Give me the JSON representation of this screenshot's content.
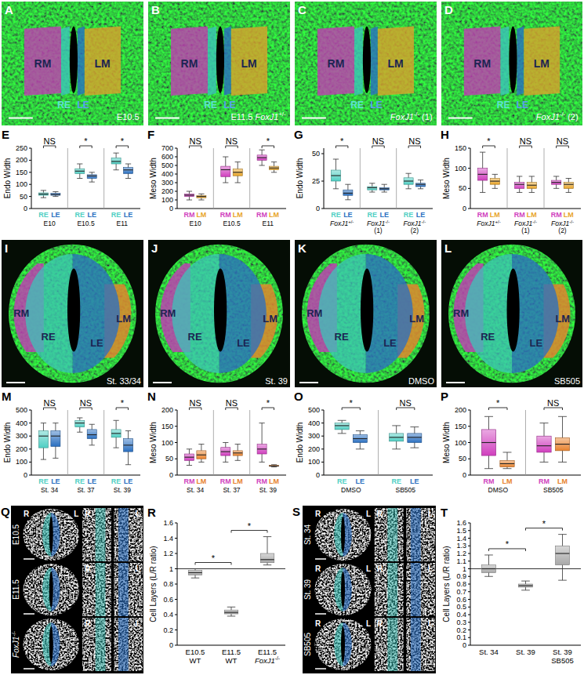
{
  "panels": [
    {
      "letter": "A",
      "caption": "E10.5",
      "regions": [
        "RM",
        "RE",
        "LE",
        "LM"
      ]
    },
    {
      "letter": "B",
      "caption": "E11.5 FoxJ1+/-",
      "regions": [
        "RM",
        "RE",
        "LE",
        "LM"
      ]
    },
    {
      "letter": "C",
      "caption": "FoxJ1-/- (1)",
      "regions": [
        "RM",
        "RE",
        "LE",
        "LM"
      ]
    },
    {
      "letter": "D",
      "caption": "FoxJ1-/- (2)",
      "regions": [
        "RM",
        "RE",
        "LE",
        "LM"
      ]
    },
    {
      "letter": "I",
      "caption": "St. 33/34",
      "regions": [
        "RM",
        "RE",
        "LE",
        "LM"
      ]
    },
    {
      "letter": "J",
      "caption": "St. 39",
      "regions": [
        "RM",
        "RE",
        "LE",
        "LM"
      ]
    },
    {
      "letter": "K",
      "caption": "DMSO",
      "regions": [
        "RM",
        "RE",
        "LE",
        "LM"
      ]
    },
    {
      "letter": "L",
      "caption": "SB505",
      "regions": [
        "RM",
        "RE",
        "LE",
        "LM"
      ]
    },
    {
      "letter": "Q",
      "rows": [
        "E10.5",
        "E11.5",
        "FoxJ1-/-"
      ],
      "sides": [
        "R",
        "L"
      ]
    },
    {
      "letter": "S",
      "rows": [
        "St. 34",
        "St. 39",
        "SB505"
      ],
      "sides": [
        "R",
        "L"
      ]
    }
  ],
  "chart_data": [
    {
      "type": "box",
      "panel": "E",
      "y_label": "Endo Width",
      "ylim": [
        0,
        250
      ],
      "yticks": [
        0,
        50,
        100,
        150,
        200,
        250
      ],
      "groups": [
        {
          "label": "E10",
          "annotation": "NS",
          "boxes": [
            {
              "name": "RE",
              "color": "#4fcfc3",
              "values": [
                45,
                55,
                60,
                65,
                75
              ]
            },
            {
              "name": "LE",
              "color": "#2a6fc0",
              "values": [
                50,
                55,
                58,
                63,
                70
              ]
            }
          ]
        },
        {
          "label": "E10.5",
          "annotation": "*",
          "boxes": [
            {
              "name": "RE",
              "color": "#4fcfc3",
              "values": [
                125,
                145,
                155,
                165,
                185
              ]
            },
            {
              "name": "LE",
              "color": "#2a6fc0",
              "values": [
                110,
                125,
                135,
                140,
                150
              ]
            }
          ]
        },
        {
          "label": "E11",
          "annotation": "*",
          "boxes": [
            {
              "name": "RE",
              "color": "#4fcfc3",
              "values": [
                160,
                185,
                195,
                210,
                230
              ]
            },
            {
              "name": "LE",
              "color": "#2a6fc0",
              "values": [
                125,
                145,
                160,
                170,
                185
              ]
            }
          ]
        }
      ]
    },
    {
      "type": "box",
      "panel": "F",
      "y_label": "Meso Width",
      "ylim": [
        0,
        700
      ],
      "yticks": [
        0,
        100,
        200,
        300,
        400,
        500,
        600,
        700
      ],
      "groups": [
        {
          "label": "E10",
          "annotation": "NS",
          "boxes": [
            {
              "name": "RM",
              "color": "#d03fbe",
              "values": [
                100,
                140,
                155,
                170,
                200
              ]
            },
            {
              "name": "LM",
              "color": "#e8a52a",
              "values": [
                100,
                125,
                140,
                150,
                170
              ]
            }
          ]
        },
        {
          "label": "E10.5",
          "annotation": "NS",
          "boxes": [
            {
              "name": "RM",
              "color": "#d03fbe",
              "values": [
                300,
                370,
                450,
                490,
                600
              ]
            },
            {
              "name": "LM",
              "color": "#e8a52a",
              "values": [
                300,
                380,
                420,
                460,
                540
              ]
            }
          ]
        },
        {
          "label": "E11",
          "annotation": "*",
          "boxes": [
            {
              "name": "RM",
              "color": "#d03fbe",
              "values": [
                500,
                560,
                590,
                620,
                680
              ]
            },
            {
              "name": "LM",
              "color": "#e8a52a",
              "values": [
                420,
                450,
                470,
                490,
                540
              ]
            }
          ]
        }
      ]
    },
    {
      "type": "box",
      "panel": "G",
      "y_label": "Endo Width",
      "ylim": [
        0,
        55
      ],
      "yticks": [
        0,
        25,
        50
      ],
      "groups": [
        {
          "label": "FoxJ1+/-",
          "annotation": "*",
          "boxes": [
            {
              "name": "RE",
              "color": "#4fcfc3",
              "values": [
                18,
                25,
                30,
                35,
                45
              ]
            },
            {
              "name": "LE",
              "color": "#2a6fc0",
              "values": [
                8,
                12,
                14,
                17,
                22
              ]
            }
          ]
        },
        {
          "label": [
            "FoxJ1-/-",
            "(1)"
          ],
          "annotation": "NS",
          "boxes": [
            {
              "name": "RE",
              "color": "#4fcfc3",
              "values": [
                15,
                17,
                19,
                20,
                23
              ]
            },
            {
              "name": "LE",
              "color": "#2a6fc0",
              "values": [
                15,
                17,
                18,
                19,
                22
              ]
            }
          ]
        },
        {
          "label": [
            "FoxJ1-/-",
            "(2)"
          ],
          "annotation": "NS",
          "boxes": [
            {
              "name": "RE",
              "color": "#4fcfc3",
              "values": [
                18,
                22,
                25,
                28,
                32
              ]
            },
            {
              "name": "LE",
              "color": "#2a6fc0",
              "values": [
                18,
                20,
                22,
                23,
                26
              ]
            }
          ]
        }
      ]
    },
    {
      "type": "box",
      "panel": "H",
      "y_label": "Meso Width",
      "ylim": [
        0,
        150
      ],
      "yticks": [
        0,
        50,
        100,
        150
      ],
      "groups": [
        {
          "label": "FoxJ1+/-",
          "annotation": "*",
          "boxes": [
            {
              "name": "RM",
              "color": "#d03fbe",
              "values": [
                40,
                70,
                85,
                100,
                140
              ]
            },
            {
              "name": "LM",
              "color": "#e8a52a",
              "values": [
                50,
                60,
                68,
                75,
                85
              ]
            }
          ]
        },
        {
          "label": [
            "FoxJ1-/-",
            "(1)"
          ],
          "annotation": "NS",
          "boxes": [
            {
              "name": "RM",
              "color": "#d03fbe",
              "values": [
                40,
                50,
                60,
                65,
                80
              ]
            },
            {
              "name": "LM",
              "color": "#e8a52a",
              "values": [
                40,
                50,
                58,
                65,
                80
              ]
            }
          ]
        },
        {
          "label": [
            "FoxJ1-/-",
            "(2)"
          ],
          "annotation": "NS",
          "boxes": [
            {
              "name": "RM",
              "color": "#d03fbe",
              "values": [
                50,
                60,
                65,
                70,
                80
              ]
            },
            {
              "name": "LM",
              "color": "#e8a52a",
              "values": [
                40,
                50,
                60,
                65,
                75
              ]
            }
          ]
        }
      ]
    },
    {
      "type": "box",
      "panel": "M",
      "y_label": "Endo Width",
      "ylim": [
        0,
        500
      ],
      "yticks": [
        0,
        100,
        200,
        300,
        400,
        500
      ],
      "groups": [
        {
          "label": "St. 34",
          "annotation": "NS",
          "boxes": [
            {
              "name": "RE",
              "color": "#4fcfc3",
              "values": [
                120,
                210,
                300,
                340,
                400
              ]
            },
            {
              "name": "LE",
              "color": "#2a6fc0",
              "values": [
                130,
                220,
                300,
                340,
                400
              ]
            }
          ]
        },
        {
          "label": "St. 37",
          "annotation": "NS",
          "boxes": [
            {
              "name": "RE",
              "color": "#4fcfc3",
              "values": [
                330,
                370,
                400,
                420,
                440
              ]
            },
            {
              "name": "LE",
              "color": "#2a6fc0",
              "values": [
                230,
                280,
                310,
                350,
                390
              ]
            }
          ]
        },
        {
          "label": "St. 39",
          "annotation": "*",
          "boxes": [
            {
              "name": "RE",
              "color": "#4fcfc3",
              "values": [
                210,
                290,
                320,
                350,
                420
              ]
            },
            {
              "name": "LE",
              "color": "#2a6fc0",
              "values": [
                80,
                180,
                230,
                280,
                340
              ]
            }
          ]
        }
      ]
    },
    {
      "type": "box",
      "panel": "N",
      "y_label": "Meso Width",
      "ylim": [
        0,
        200
      ],
      "yticks": [
        0,
        50,
        100,
        150,
        200
      ],
      "groups": [
        {
          "label": "St. 34",
          "annotation": "NS",
          "boxes": [
            {
              "name": "RM",
              "color": "#d03fbe",
              "values": [
                30,
                45,
                55,
                65,
                80
              ]
            },
            {
              "name": "LM",
              "color": "#e8832f",
              "values": [
                40,
                50,
                62,
                75,
                95
              ]
            }
          ]
        },
        {
          "label": "St. 37",
          "annotation": "NS",
          "boxes": [
            {
              "name": "RM",
              "color": "#d03fbe",
              "values": [
                40,
                60,
                72,
                85,
                100
              ]
            },
            {
              "name": "LM",
              "color": "#e8832f",
              "values": [
                45,
                60,
                68,
                75,
                95
              ]
            }
          ]
        },
        {
          "label": "St. 39",
          "annotation": "*",
          "boxes": [
            {
              "name": "RM",
              "color": "#d03fbe",
              "values": [
                40,
                65,
                80,
                95,
                160
              ]
            },
            {
              "name": "LM",
              "color": "#e8832f",
              "values": [
                25,
                27,
                28,
                30,
                32
              ]
            }
          ]
        }
      ]
    },
    {
      "type": "box",
      "panel": "O",
      "y_label": "Endo Width",
      "ylim": [
        0,
        500
      ],
      "yticks": [
        0,
        100,
        200,
        300,
        400,
        500
      ],
      "groups": [
        {
          "label": "DMSO",
          "annotation": "*",
          "boxes": [
            {
              "name": "RE",
              "color": "#4fcfc3",
              "values": [
                320,
                350,
                380,
                400,
                420
              ]
            },
            {
              "name": "LE",
              "color": "#2a6fc0",
              "values": [
                200,
                250,
                280,
                310,
                340
              ]
            }
          ]
        },
        {
          "label": "SB505",
          "annotation": "NS",
          "boxes": [
            {
              "name": "RE",
              "color": "#4fcfc3",
              "values": [
                200,
                260,
                290,
                320,
                380
              ]
            },
            {
              "name": "LE",
              "color": "#2a6fc0",
              "values": [
                210,
                250,
                290,
                320,
                370
              ]
            }
          ]
        }
      ]
    },
    {
      "type": "box",
      "panel": "P",
      "y_label": "Meso Width",
      "ylim": [
        0,
        200
      ],
      "yticks": [
        0,
        50,
        100,
        150,
        200
      ],
      "groups": [
        {
          "label": "DMSO",
          "annotation": "*",
          "boxes": [
            {
              "name": "RM",
              "color": "#d03fbe",
              "values": [
                20,
                60,
                100,
                140,
                180
              ]
            },
            {
              "name": "LM",
              "color": "#e8832f",
              "values": [
                20,
                25,
                35,
                45,
                70
              ]
            }
          ]
        },
        {
          "label": "SB505",
          "annotation": "NS",
          "boxes": [
            {
              "name": "RM",
              "color": "#d03fbe",
              "values": [
                40,
                70,
                90,
                120,
                160
              ]
            },
            {
              "name": "LM",
              "color": "#e8832f",
              "values": [
                40,
                75,
                95,
                115,
                180
              ]
            }
          ]
        }
      ]
    },
    {
      "type": "box",
      "panel": "R",
      "y_label": "Cell Layers (L/R ratio)",
      "ylim": [
        0,
        1.6
      ],
      "yticks": [
        0,
        0.2,
        0.4,
        0.6,
        0.8,
        1,
        1.2,
        1.4,
        1.6
      ],
      "color": "#a8a8a8",
      "reference": 1,
      "categories": [
        [
          "E10.5",
          "WT"
        ],
        [
          "E11.5",
          "WT"
        ],
        [
          "E11.5",
          "FoxJ1-/-"
        ]
      ],
      "values": [
        [
          0.88,
          0.92,
          0.95,
          0.98,
          1.0
        ],
        [
          0.38,
          0.41,
          0.43,
          0.46,
          0.5
        ],
        [
          1.05,
          1.08,
          1.12,
          1.2,
          1.42
        ]
      ],
      "annotations": [
        "*",
        "*"
      ]
    },
    {
      "type": "box",
      "panel": "T",
      "y_label": "Cell Layers (L/R ratio)",
      "ylim": [
        0,
        1.6
      ],
      "yticks": [
        0,
        0.1,
        0.2,
        0.3,
        0.4,
        0.5,
        0.6,
        0.7,
        0.8,
        0.9,
        1,
        1.1,
        1.2,
        1.3,
        1.4,
        1.5,
        1.6
      ],
      "color": "#a8a8a8",
      "reference": 1,
      "categories": [
        [
          "St. 34"
        ],
        [
          "St. 39"
        ],
        [
          "St. 39",
          "SB505"
        ]
      ],
      "values": [
        [
          0.9,
          0.95,
          1.0,
          1.05,
          1.18
        ],
        [
          0.72,
          0.76,
          0.78,
          0.8,
          0.84
        ],
        [
          0.85,
          1.05,
          1.2,
          1.3,
          1.45
        ]
      ],
      "annotations": [
        "*",
        "*"
      ]
    }
  ]
}
